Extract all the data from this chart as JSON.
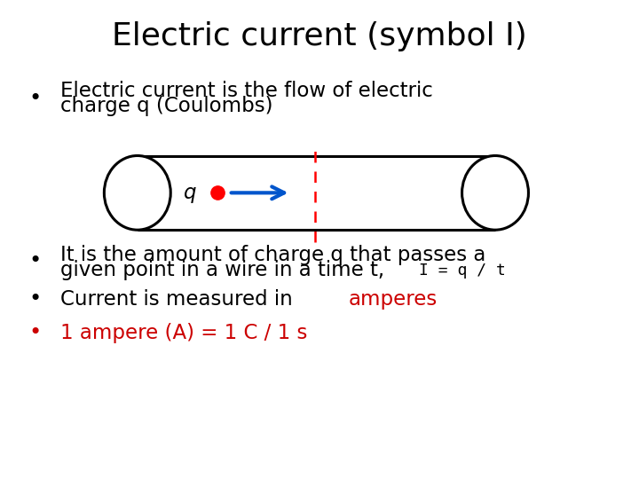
{
  "title": "Electric current (symbol I)",
  "title_fontsize": 26,
  "bg_color": "#ffffff",
  "bullet1_line1": "Electric current is the flow of electric",
  "bullet1_line2": "charge q (Coulombs)",
  "bullet2_line1": "It is the amount of charge q that passes a",
  "bullet2_line2_pre": "given point in a wire in a time t, ",
  "bullet2_formula": "I = q / t",
  "bullet3_black": "Current is measured in ",
  "bullet3_red": "amperes",
  "bullet4": "1 ampere (A) = 1 C / 1 s",
  "black_color": "#000000",
  "red_color": "#cc0000",
  "blue_color": "#0055cc",
  "body_fontsize": 16.5,
  "formula_fontsize": 13
}
